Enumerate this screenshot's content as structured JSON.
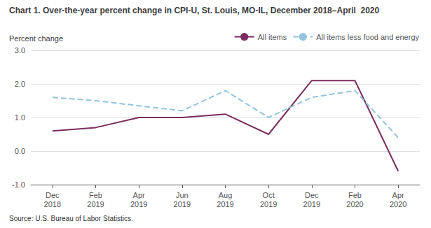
{
  "chart_data": {
    "type": "line",
    "title": "Chart 1. Over-the-year percent change in CPI-U, St. Louis, MO-IL, December 2018–April  2020",
    "ylabel": "Percent change",
    "annotations": [
      "Source: U.S. Bureau of Labor Statistics."
    ],
    "categories": [
      "Dec\n2018",
      "Feb\n2019",
      "Apr\n2019",
      "Jun\n2019",
      "Aug\n2019",
      "Oct\n2019",
      "Dec\n2019",
      "Feb\n2020",
      "Apr\n2020"
    ],
    "series": [
      {
        "name": "All items",
        "color": "#7B2D5E",
        "line_style": "solid",
        "values": [
          0.6,
          0.7,
          1.0,
          1.0,
          1.1,
          0.5,
          2.1,
          2.1,
          -0.6
        ]
      },
      {
        "name": "All items less food and energy",
        "color": "#92C5DE",
        "line_style": "dashed",
        "values": [
          1.6,
          1.5,
          1.35,
          1.2,
          1.8,
          1.0,
          1.6,
          1.8,
          0.4
        ]
      }
    ],
    "ylim": [
      -1.0,
      3.0
    ],
    "yticks": [
      {
        "value": -1.0,
        "label": "-1.0"
      },
      {
        "value": 0.0,
        "label": "0.0"
      },
      {
        "value": 1.0,
        "label": "1.0"
      },
      {
        "value": 2.0,
        "label": "2.0"
      },
      {
        "value": 3.0,
        "label": "3.0"
      }
    ],
    "grid": true,
    "legend": "top"
  }
}
